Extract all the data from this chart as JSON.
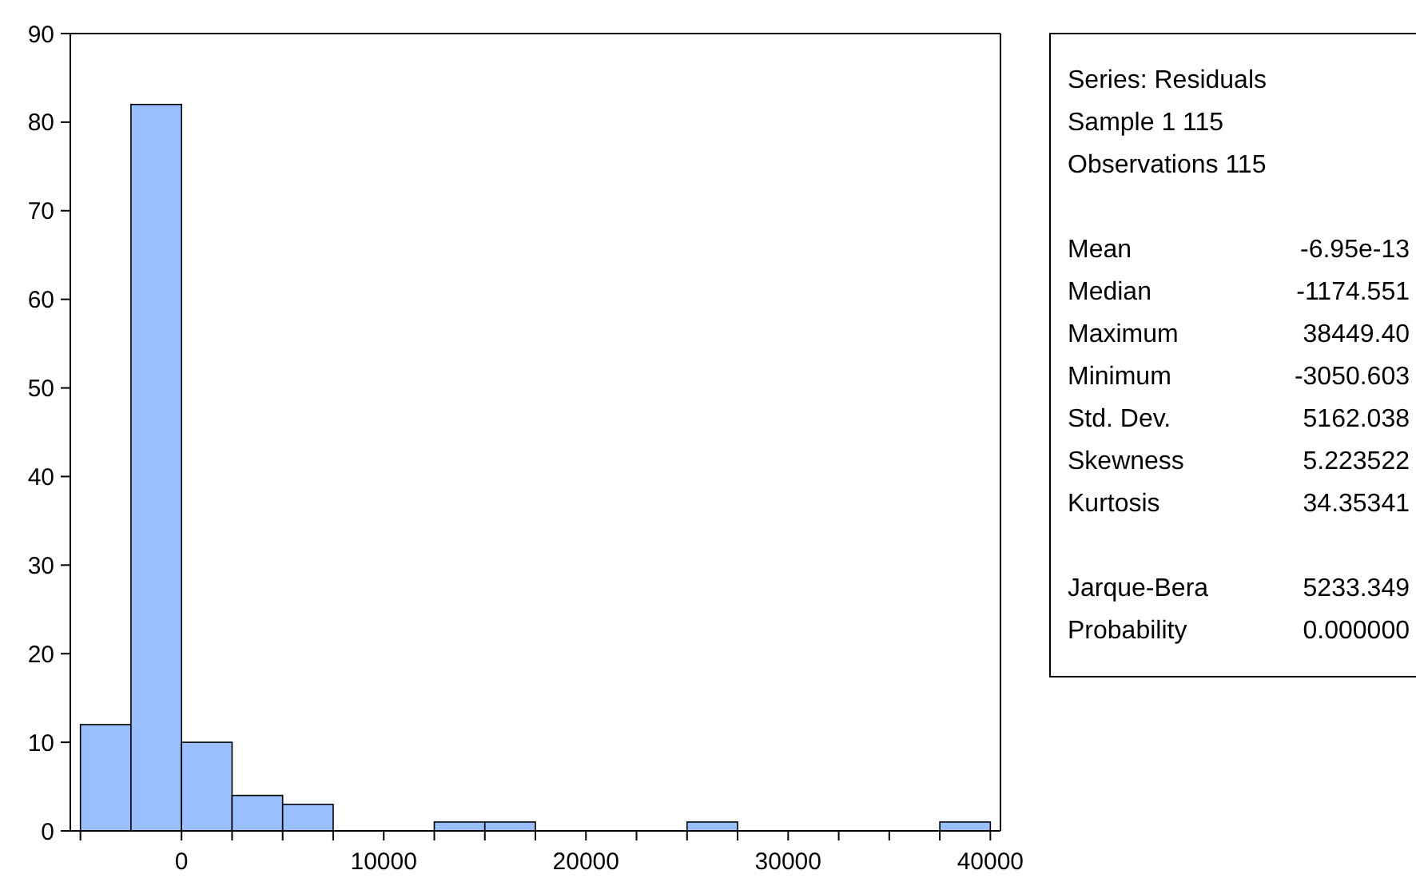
{
  "chart_data": [
    {
      "type": "histogram",
      "bins": [
        -5000,
        -2500,
        0,
        2500,
        5000,
        7500,
        10000,
        12500,
        15000,
        17500,
        20000,
        22500,
        25000,
        27500,
        30000,
        32500,
        35000,
        37500,
        40000
      ],
      "values": [
        12,
        82,
        10,
        4,
        3,
        0,
        0,
        1,
        1,
        0,
        0,
        0,
        1,
        0,
        0,
        0,
        0,
        1
      ],
      "color": "#99bfff",
      "xlim": [
        -5500,
        40500
      ],
      "xticks": [
        {
          "value": -5000,
          "label": null
        },
        0,
        {
          "value": 2500,
          "label": null
        },
        {
          "value": 5000,
          "label": null
        },
        {
          "value": 7500,
          "label": null
        },
        10000,
        {
          "value": 12500,
          "label": null
        },
        {
          "value": 15000,
          "label": null
        },
        {
          "value": 17500,
          "label": null
        },
        20000,
        {
          "value": 22500,
          "label": null
        },
        {
          "value": 25000,
          "label": null
        },
        {
          "value": 27500,
          "label": null
        },
        30000,
        {
          "value": 32500,
          "label": null
        },
        {
          "value": 35000,
          "label": null
        },
        {
          "value": 37500,
          "label": null
        },
        40000
      ],
      "ylim": [
        0,
        90
      ],
      "yticks": [
        0,
        10,
        20,
        30,
        40,
        50,
        60,
        70,
        80,
        90
      ],
      "grid": false
    },
    {
      "type": "other",
      "annotations": [
        "Series: Residuals",
        "Sample 1 115",
        "Observations 115"
      ],
      "categories": [
        "Mean",
        "Median",
        "Maximum",
        "Minimum",
        "Std. Dev.",
        "Skewness",
        "Kurtosis",
        null,
        "Jarque-Bera",
        "Probability"
      ],
      "value_labels": [
        "-6.95e-13",
        "-1174.551",
        "38449.40",
        "-3050.603",
        "5162.038",
        "5.223522",
        "34.35341",
        null,
        "5233.349",
        "0.000000"
      ]
    }
  ]
}
